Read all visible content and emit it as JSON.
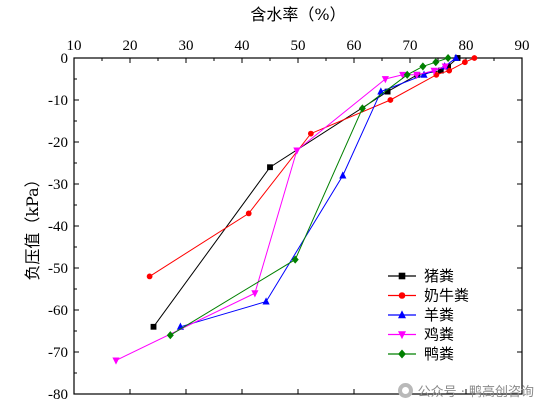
{
  "chart_data": {
    "type": "line",
    "title": "",
    "xlabel": "含水率（%）",
    "ylabel": "负压值（kPa）",
    "xlabel_position": "top",
    "xlim": [
      10,
      90
    ],
    "ylim": [
      -80,
      0
    ],
    "x_ticks": [
      10,
      20,
      30,
      40,
      50,
      60,
      70,
      80,
      90
    ],
    "y_ticks": [
      0,
      -10,
      -20,
      -30,
      -40,
      -50,
      -60,
      -70,
      -80
    ],
    "grid": false,
    "legend_position": "bottom-right",
    "series": [
      {
        "name": "猪粪",
        "color": "#000000",
        "marker": "square",
        "x": [
          24.2,
          45.0,
          66.0,
          71.3,
          75.5,
          76.8,
          78.5
        ],
        "y": [
          -64,
          -26,
          -8,
          -4,
          -3,
          -2,
          0
        ]
      },
      {
        "name": "奶牛粪",
        "color": "#ff0000",
        "marker": "circle",
        "x": [
          23.5,
          41.2,
          52.3,
          66.5,
          74.7,
          77.0,
          79.8,
          81.5
        ],
        "y": [
          -52,
          -37,
          -18,
          -10,
          -4,
          -3,
          -1,
          0
        ]
      },
      {
        "name": "羊粪",
        "color": "#0000ff",
        "marker": "triangle-up",
        "x": [
          29.0,
          44.3,
          58.0,
          64.8,
          72.5,
          76.2,
          78.2
        ],
        "y": [
          -64,
          -58,
          -28,
          -8,
          -4,
          -2,
          0
        ]
      },
      {
        "name": "鸡粪",
        "color": "#ff00ff",
        "marker": "triangle-down",
        "x": [
          17.5,
          42.3,
          49.8,
          65.6,
          68.7,
          71.2,
          74.3,
          76.3
        ],
        "y": [
          -72,
          -56,
          -22,
          -5,
          -4,
          -4,
          -3,
          -2
        ]
      },
      {
        "name": "鸭粪",
        "color": "#008000",
        "marker": "diamond",
        "x": [
          27.2,
          49.5,
          61.5,
          69.5,
          72.3,
          74.6,
          76.8
        ],
        "y": [
          -66,
          -48,
          -12,
          -4,
          -2,
          -1,
          0
        ]
      }
    ]
  },
  "watermark": {
    "text": "公众号 · 鸭高创咨询",
    "icon": "wechat-icon"
  }
}
